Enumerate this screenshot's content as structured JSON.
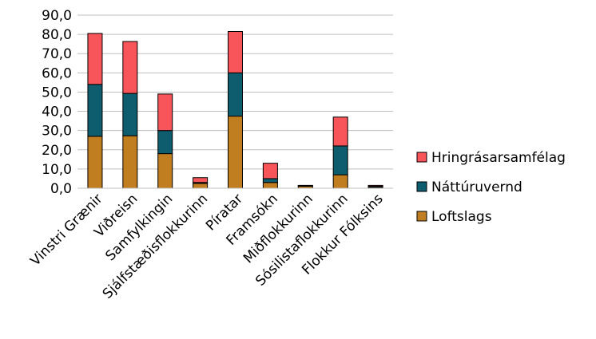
{
  "chart_data": {
    "type": "bar",
    "stacked": true,
    "categories": [
      "Vinstri Grænir",
      "Viðreisn",
      "Samfylkingin",
      "Sjálfstæðisflokkurinn",
      "Píratar",
      "Framsókn",
      "Miðflokkurinn",
      "Sósilistaflokkurinn",
      "Flokkur Fólksins"
    ],
    "series": [
      {
        "name": "Loftslags",
        "color": "#C07E20",
        "values": [
          27.0,
          27.3,
          18.0,
          2.5,
          37.5,
          3.0,
          1.0,
          7.0,
          0.5
        ]
      },
      {
        "name": "Náttúruvernd",
        "color": "#0E5D6E",
        "values": [
          27.0,
          22.0,
          12.0,
          0.5,
          22.5,
          2.0,
          0.3,
          15.0,
          0.5
        ]
      },
      {
        "name": "Hringrásarsamfélag",
        "color": "#F8555A",
        "values": [
          26.5,
          27.0,
          19.0,
          2.5,
          21.5,
          8.0,
          0.2,
          15.0,
          0.5
        ]
      }
    ],
    "ylim": [
      0,
      90
    ],
    "yticks": [
      "0,0",
      "10,0",
      "20,0",
      "30,0",
      "40,0",
      "50,0",
      "60,0",
      "70,0",
      "80,0",
      "90,0"
    ],
    "grid": true,
    "legend": "right",
    "xlabel": "",
    "ylabel": "",
    "title": ""
  }
}
